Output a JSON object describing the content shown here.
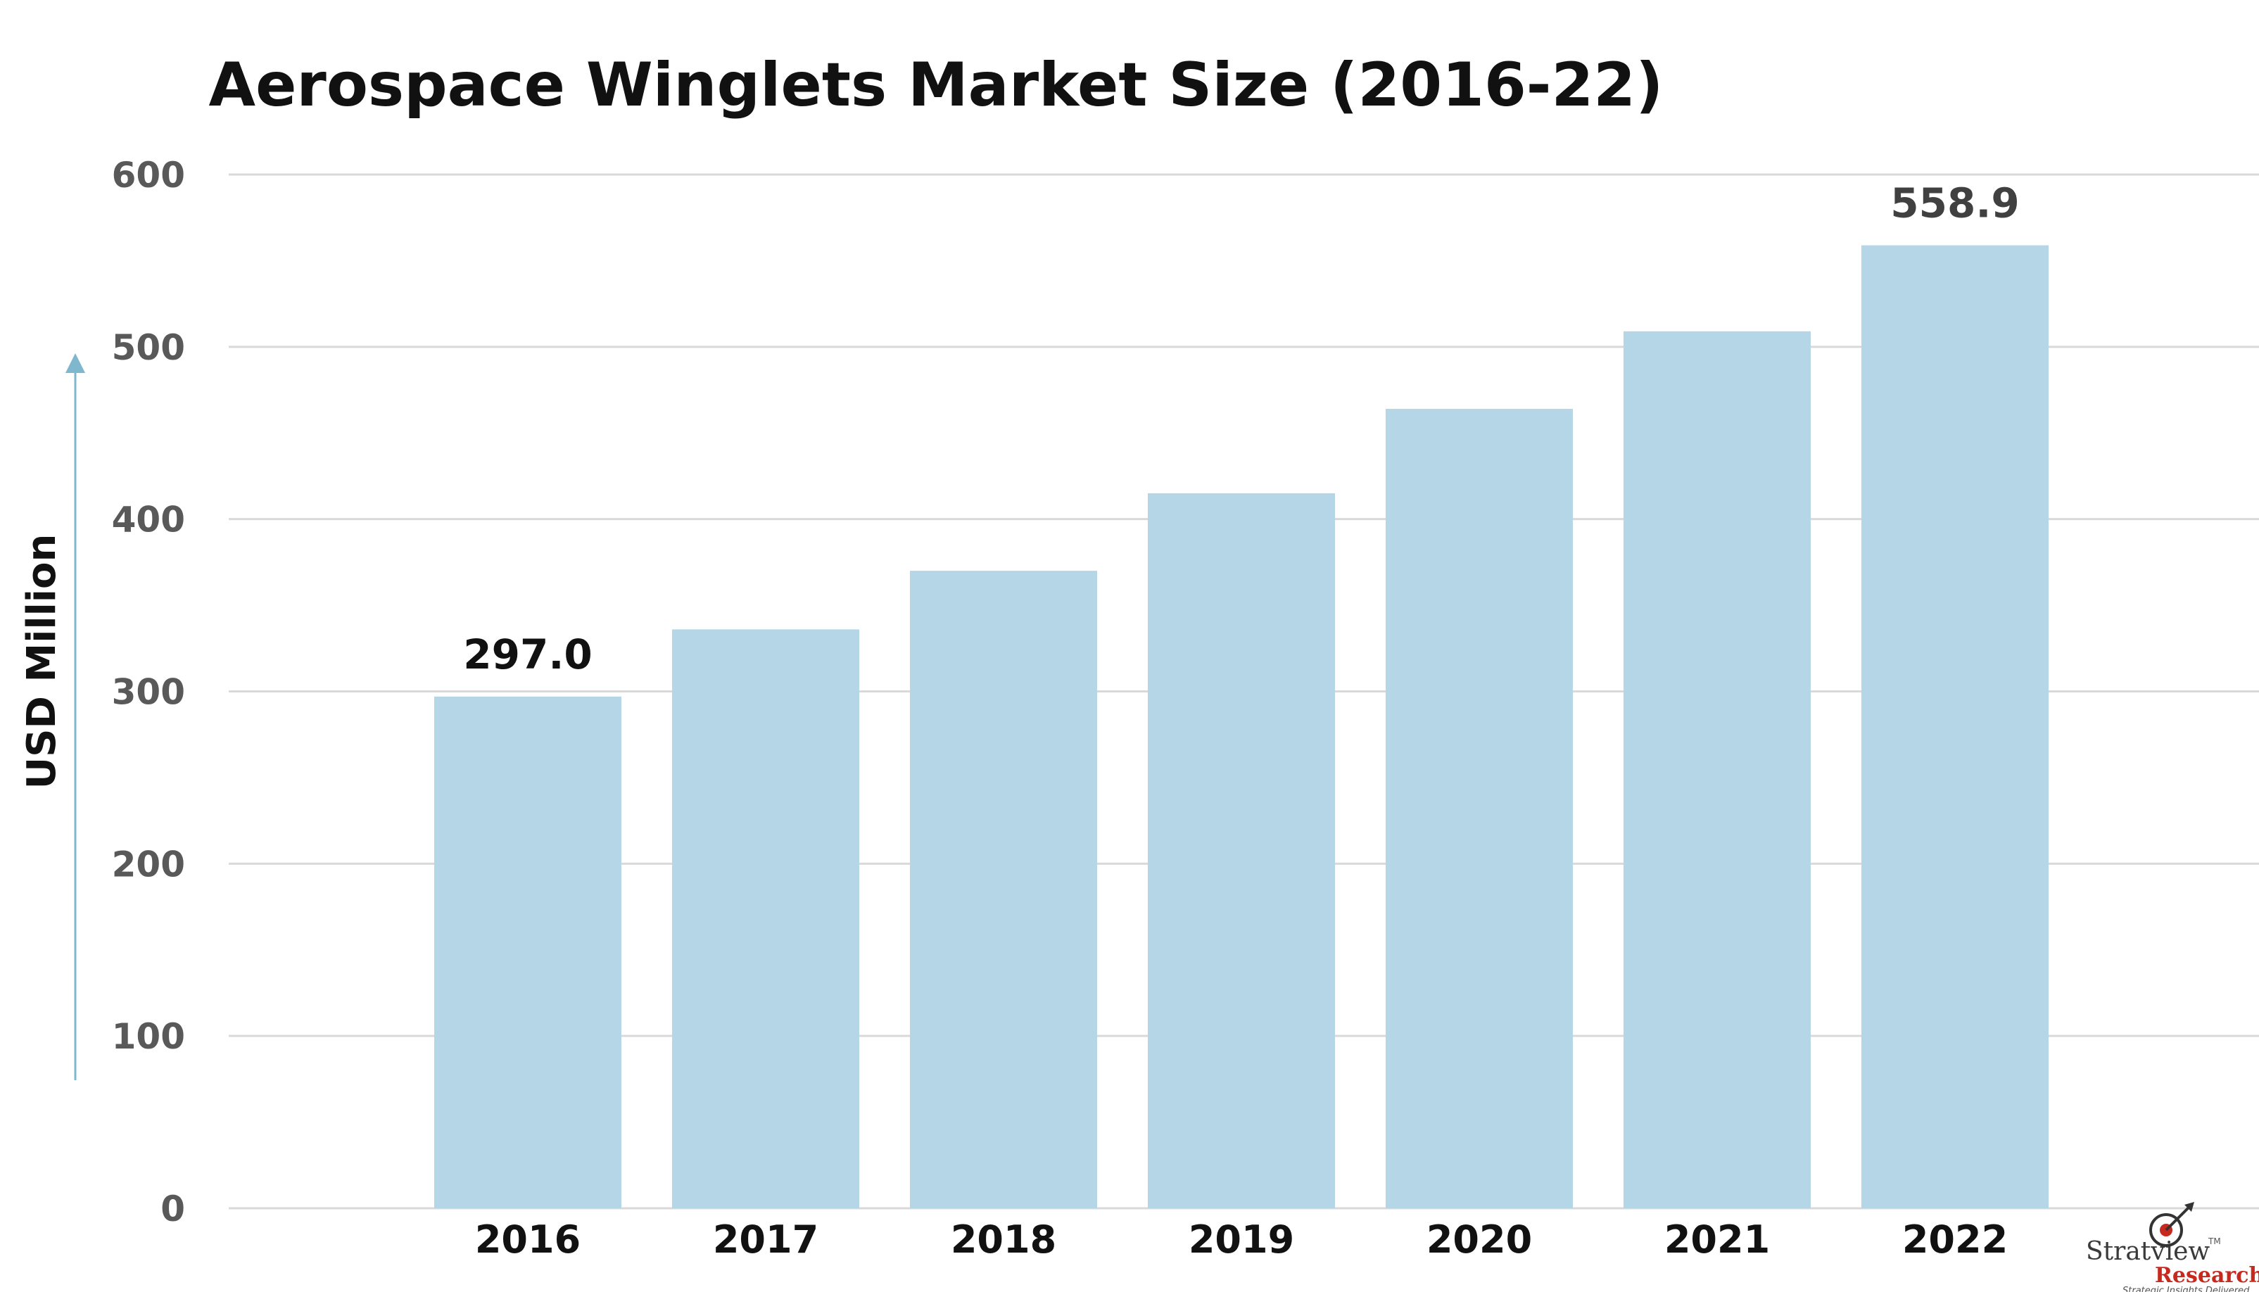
{
  "chart_data": {
    "type": "bar",
    "title": "Aerospace Winglets Market Size (2016-22)",
    "ylabel": "USD Million",
    "xlabel": "",
    "categories": [
      "2016",
      "2017",
      "2018",
      "2019",
      "2020",
      "2021",
      "2022"
    ],
    "values": [
      297.0,
      336,
      370,
      415,
      464,
      509,
      558.9
    ],
    "data_labels": [
      {
        "index": 0,
        "text": "297.0"
      },
      {
        "index": 6,
        "text": "558.9"
      }
    ],
    "ylim": [
      0,
      600
    ],
    "yticks": [
      "0",
      "100",
      "200",
      "300",
      "400",
      "500",
      "600"
    ],
    "grid": true,
    "legend": "none",
    "colors": {
      "bar": "#b5d6e6",
      "grid": "#d9d9d9",
      "arrow": "#7fb7cf",
      "ytick_text": "#595959",
      "label_first": "#111111",
      "label_last": "#404040"
    }
  },
  "logo": {
    "name": "Stratview",
    "tm": "TM",
    "sub": "Research",
    "tagline": "Strategic Insights Delivered",
    "name_color": "#3a3a3a",
    "sub_color": "#c8291f",
    "icon": "target-arrow-icon"
  }
}
